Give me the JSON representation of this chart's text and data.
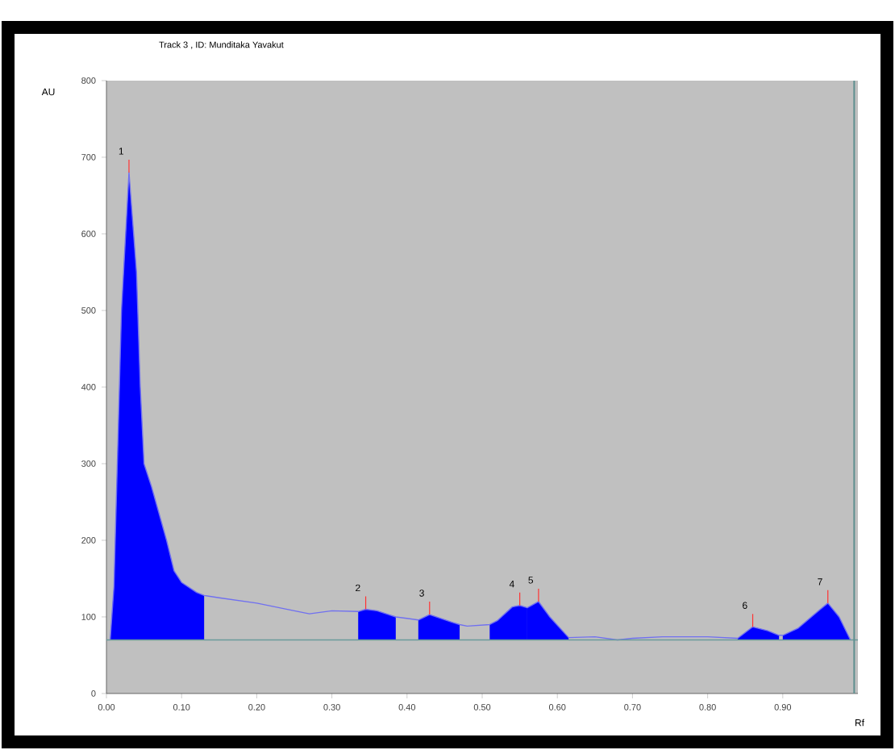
{
  "chart_data": {
    "type": "area",
    "title": "Track  3 , ID: Munditaka Yavakut",
    "xlabel": "Rf",
    "ylabel": "AU",
    "xlim": [
      0,
      1.0
    ],
    "ylim": [
      0,
      800
    ],
    "xticks": [
      {
        "value": 0,
        "label": "0.00"
      },
      {
        "value": 0.1,
        "label": "0.10"
      },
      {
        "value": 0.2,
        "label": "0.20"
      },
      {
        "value": 0.3,
        "label": "0.30"
      },
      {
        "value": 0.4,
        "label": "0.40"
      },
      {
        "value": 0.5,
        "label": "0.50"
      },
      {
        "value": 0.6,
        "label": "0.60"
      },
      {
        "value": 0.7,
        "label": "0.70"
      },
      {
        "value": 0.8,
        "label": "0.80"
      },
      {
        "value": 0.9,
        "label": "0.90"
      }
    ],
    "yticks": [
      0,
      100,
      200,
      300,
      400,
      500,
      600,
      700,
      800
    ],
    "grid": false,
    "series": [
      {
        "type": "line",
        "color": "#7070f0",
        "x": [
          0.005,
          0.01,
          0.02,
          0.03,
          0.04,
          0.045,
          0.05,
          0.06,
          0.08,
          0.09,
          0.1,
          0.12,
          0.13,
          0.15,
          0.2,
          0.25,
          0.27,
          0.3,
          0.335,
          0.345,
          0.36,
          0.385,
          0.415,
          0.43,
          0.46,
          0.47,
          0.48,
          0.51,
          0.52,
          0.54,
          0.55,
          0.56,
          0.575,
          0.59,
          0.615,
          0.65,
          0.68,
          0.7,
          0.74,
          0.8,
          0.84,
          0.86,
          0.88,
          0.895,
          0.9,
          0.92,
          0.95,
          0.96,
          0.975,
          0.99
        ],
        "values": [
          70,
          140,
          500,
          680,
          550,
          400,
          300,
          270,
          200,
          160,
          145,
          132,
          128,
          125,
          118,
          108,
          104,
          108,
          107,
          110,
          108,
          100,
          96,
          103,
          93,
          90,
          88,
          90,
          95,
          113,
          115,
          112,
          120,
          100,
          73,
          74,
          70,
          72,
          74,
          74,
          72,
          87,
          82,
          76,
          76,
          85,
          110,
          118,
          100,
          70
        ]
      },
      {
        "color": "#0000ff",
        "x": [
          0.005,
          0.01,
          0.02,
          0.03,
          0.04,
          0.045,
          0.05,
          0.06,
          0.08,
          0.09,
          0.1,
          0.12,
          0.13
        ],
        "values": [
          70,
          140,
          500,
          680,
          550,
          400,
          300,
          270,
          200,
          160,
          145,
          132,
          128
        ]
      },
      {
        "color": "#0000ff",
        "x": [
          0.335,
          0.345,
          0.36,
          0.385
        ],
        "values": [
          107,
          110,
          108,
          100
        ]
      },
      {
        "color": "#0000ff",
        "x": [
          0.415,
          0.43,
          0.46,
          0.47
        ],
        "values": [
          96,
          103,
          93,
          90
        ]
      },
      {
        "color": "#0000ff",
        "x": [
          0.51,
          0.52,
          0.54,
          0.55,
          0.56
        ],
        "values": [
          90,
          95,
          113,
          115,
          112
        ]
      },
      {
        "color": "#0000ff",
        "x": [
          0.56,
          0.575,
          0.59,
          0.615
        ],
        "values": [
          112,
          120,
          100,
          73
        ]
      },
      {
        "color": "#0000ff",
        "x": [
          0.84,
          0.86,
          0.88,
          0.895
        ],
        "values": [
          72,
          87,
          82,
          76
        ]
      },
      {
        "color": "#0000ff",
        "x": [
          0.9,
          0.92,
          0.95,
          0.96,
          0.975,
          0.99
        ],
        "values": [
          76,
          85,
          110,
          118,
          100,
          70
        ]
      }
    ],
    "ref_lines": [
      {
        "axis": "y",
        "value": 70,
        "color": "#6a9a9a"
      },
      {
        "axis": "x",
        "value": 0.995,
        "color": "#5f8f8f"
      }
    ],
    "annotations": [
      {
        "text": "1",
        "x": 0.03,
        "y": 680
      },
      {
        "text": "2",
        "x": 0.345,
        "y": 110
      },
      {
        "text": "3",
        "x": 0.43,
        "y": 103
      },
      {
        "text": "4",
        "x": 0.55,
        "y": 115
      },
      {
        "text": "5",
        "x": 0.575,
        "y": 120
      },
      {
        "text": "6",
        "x": 0.86,
        "y": 87
      },
      {
        "text": "7",
        "x": 0.96,
        "y": 118
      }
    ]
  }
}
